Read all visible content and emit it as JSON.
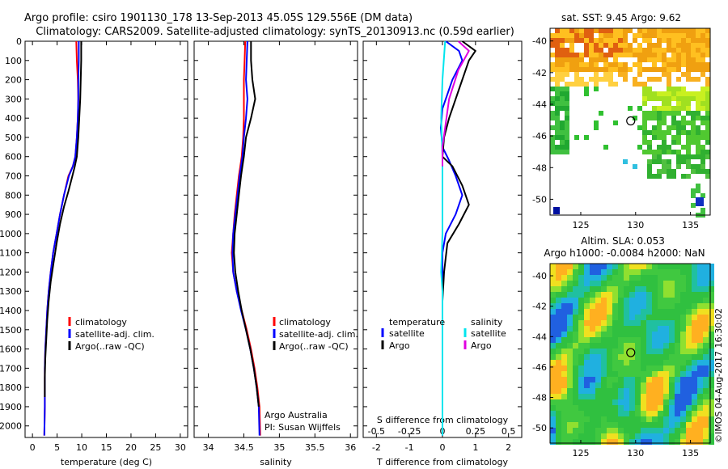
{
  "title_line1": "Argo profile: csiro 1901130_178 13-Sep-2013 45.05S 129.556E (DM data)",
  "title_line2": "Climatology: CARS2009. Satellite-adjusted climatology: synTS_20130913.nc (0.59d earlier)",
  "credit": "©IMOS 04-Aug-2017 16:30:02",
  "colors": {
    "climatology": "#ff0000",
    "satellite": "#0000ff",
    "argo": "#000000",
    "s_satellite": "#00e5ee",
    "s_argo": "#e000e0"
  },
  "chart_data": [
    {
      "type": "line",
      "id": "temperature",
      "xlabel": "temperature (deg C)",
      "ylabel": "",
      "xlim": [
        -1.5,
        31.5
      ],
      "ylim": [
        2060,
        0
      ],
      "xticks": [
        0,
        5,
        10,
        15,
        20,
        25,
        30
      ],
      "xtick_labels": [
        "0",
        "5",
        "10",
        "15",
        "20",
        "25",
        "30"
      ],
      "yticks": [
        0,
        100,
        200,
        300,
        400,
        500,
        600,
        700,
        800,
        900,
        1000,
        1100,
        1200,
        1300,
        1400,
        1500,
        1600,
        1700,
        1800,
        1900,
        2000
      ],
      "ytick_labels": [
        "0",
        "100",
        "200",
        "300",
        "400",
        "500",
        "600",
        "700",
        "800",
        "900",
        "1000",
        "1100",
        "1200",
        "1300",
        "1400",
        "1500",
        "1600",
        "1700",
        "1800",
        "1900",
        "2000"
      ],
      "legend": [
        "climatology",
        "satellite-adj. clim.",
        "Argo(..raw -QC)"
      ],
      "series": [
        {
          "name": "climatology",
          "color": "#ff0000",
          "x": [
            8.9,
            9.0,
            9.2,
            9.3,
            9.2,
            9.0,
            8.7,
            8.2,
            7.3,
            6.4,
            5.6,
            4.9,
            4.2,
            3.7,
            3.3,
            3.0,
            2.8,
            2.6,
            2.5,
            2.5,
            2.5,
            2.4
          ],
          "y": [
            0,
            100,
            200,
            300,
            400,
            500,
            600,
            650,
            700,
            800,
            900,
            1000,
            1100,
            1200,
            1300,
            1400,
            1500,
            1600,
            1700,
            1800,
            1900,
            2050
          ]
        },
        {
          "name": "satellite-adj. clim.",
          "color": "#0000ff",
          "x": [
            9.4,
            9.4,
            9.3,
            9.3,
            9.2,
            9.0,
            8.7,
            8.2,
            7.4,
            6.4,
            5.6,
            4.9,
            4.2,
            3.7,
            3.3,
            3.0,
            2.8,
            2.6,
            2.5,
            2.5,
            2.5,
            2.4
          ],
          "y": [
            0,
            100,
            200,
            300,
            400,
            500,
            600,
            650,
            700,
            800,
            900,
            1000,
            1100,
            1200,
            1300,
            1400,
            1500,
            1600,
            1700,
            1800,
            1900,
            2050
          ]
        },
        {
          "name": "Argo(..raw -QC)",
          "color": "#000000",
          "x": [
            9.9,
            9.9,
            9.8,
            9.7,
            9.5,
            9.3,
            9.0,
            8.6,
            8.1,
            7.3,
            6.4,
            5.6,
            4.9,
            4.3,
            3.7,
            3.3,
            3.0,
            2.8,
            2.6,
            2.5,
            2.5
          ],
          "y": [
            0,
            100,
            200,
            300,
            400,
            500,
            600,
            650,
            700,
            780,
            860,
            950,
            1050,
            1150,
            1250,
            1350,
            1450,
            1550,
            1650,
            1750,
            1850
          ]
        }
      ]
    },
    {
      "type": "line",
      "id": "salinity",
      "xlabel": "salinity",
      "xlim": [
        33.8,
        36.1
      ],
      "ylim": [
        2060,
        0
      ],
      "xticks": [
        34,
        34.5,
        35,
        35.5,
        36
      ],
      "xtick_labels": [
        "34",
        "34.5",
        "35",
        "35.5",
        "36"
      ],
      "legend": [
        "climatology",
        "satellite-adj. clim.",
        "Argo(..raw -QC)"
      ],
      "annotation_line1": "Argo Australia",
      "annotation_line2": "PI: Susan Wijffels",
      "series": [
        {
          "name": "climatology",
          "color": "#ff0000",
          "x": [
            34.52,
            34.51,
            34.5,
            34.5,
            34.5,
            34.49,
            34.47,
            34.45,
            34.43,
            34.4,
            34.37,
            34.35,
            34.33,
            34.35,
            34.4,
            34.47,
            34.54,
            34.6,
            34.65,
            34.69,
            34.72,
            34.73
          ],
          "y": [
            0,
            100,
            200,
            300,
            400,
            500,
            600,
            650,
            700,
            800,
            900,
            1000,
            1100,
            1200,
            1300,
            1400,
            1500,
            1600,
            1700,
            1800,
            1900,
            2050
          ]
        },
        {
          "name": "satellite-adj. clim.",
          "color": "#0000ff",
          "x": [
            34.55,
            34.54,
            34.53,
            34.55,
            34.53,
            34.5,
            34.48,
            34.46,
            34.44,
            34.41,
            34.38,
            34.35,
            34.34,
            34.35,
            34.4,
            34.46,
            34.53,
            34.59,
            34.64,
            34.68,
            34.71,
            34.72
          ],
          "y": [
            0,
            100,
            200,
            300,
            400,
            500,
            600,
            650,
            700,
            800,
            900,
            1000,
            1100,
            1200,
            1300,
            1400,
            1500,
            1600,
            1700,
            1800,
            1900,
            2050
          ]
        },
        {
          "name": "Argo(..raw -QC)",
          "color": "#000000",
          "x": [
            34.6,
            34.6,
            34.62,
            34.66,
            34.6,
            34.53,
            34.5,
            34.48,
            34.46,
            34.43,
            34.4,
            34.37,
            34.36,
            34.38,
            34.42,
            34.47,
            34.53,
            34.59,
            34.64,
            34.68,
            34.71
          ],
          "y": [
            0,
            100,
            200,
            300,
            400,
            500,
            600,
            650,
            700,
            800,
            900,
            1000,
            1100,
            1200,
            1300,
            1400,
            1500,
            1600,
            1700,
            1800,
            1900
          ]
        }
      ]
    },
    {
      "type": "line",
      "id": "difference",
      "xlabel": "T difference from climatology",
      "xlabel_top": "S difference from climatology",
      "xlim": [
        -2.4,
        2.4
      ],
      "ylim": [
        2060,
        0
      ],
      "xticks": [
        -2,
        -1,
        0,
        1,
        2
      ],
      "xtick_labels": [
        "-2",
        "-1",
        "0",
        "1",
        "2"
      ],
      "xticks_top": [
        -0.5,
        -0.25,
        0,
        0.25,
        0.5
      ],
      "xtick_labels_top": [
        "-0.5",
        "-0.25",
        "0",
        "0.25",
        "0.5"
      ],
      "legend_temperature_title": "temperature",
      "legend_salinity_title": "salinity",
      "legend_temperature": [
        "satellite",
        "Argo"
      ],
      "legend_salinity": [
        "satellite",
        "Argo"
      ],
      "series": [
        {
          "name": "T satellite",
          "color": "#0000ff",
          "x": [
            0.1,
            0.5,
            0.6,
            0.3,
            0.0,
            -0.05,
            0.0,
            0.2,
            0.4,
            0.6,
            0.4,
            0.1,
            0.0,
            0.0,
            0.0,
            0.0,
            0.0,
            0.0,
            0.0,
            0.0
          ],
          "y": [
            0,
            50,
            100,
            200,
            350,
            450,
            550,
            620,
            700,
            800,
            900,
            1000,
            1100,
            1200,
            1400,
            1600,
            1800,
            1900,
            2000,
            2050
          ]
        },
        {
          "name": "T Argo",
          "color": "#000000",
          "x": [
            0.6,
            1.0,
            0.8,
            0.5,
            0.2,
            0.05,
            0.0,
            0.3,
            0.6,
            0.8,
            0.5,
            0.15,
            0.05,
            0.0,
            0.0,
            0.0,
            0.0,
            0.0,
            0.0
          ],
          "y": [
            0,
            50,
            100,
            250,
            400,
            500,
            600,
            650,
            750,
            850,
            950,
            1050,
            1200,
            1350,
            1500,
            1650,
            1750,
            1850,
            1900
          ]
        },
        {
          "name": "S satellite",
          "color": "#00e5ee",
          "x": [
            0.02,
            0.0,
            -0.01,
            0.0,
            0.0,
            0.0,
            -0.01,
            0.0,
            0.0,
            0.0,
            0.0,
            0.0,
            0.0,
            0.0,
            0.0
          ],
          "y": [
            0,
            200,
            400,
            600,
            800,
            1000,
            1200,
            1300,
            1400,
            1500,
            1600,
            1700,
            1800,
            1900,
            2050
          ]
        },
        {
          "name": "S Argo",
          "color": "#e000e0",
          "x": [
            0.12,
            0.2,
            0.12,
            0.05,
            0.02,
            0.0,
            0.0
          ],
          "y": [
            0,
            50,
            150,
            300,
            450,
            550,
            650
          ]
        }
      ]
    }
  ],
  "map_sst": {
    "title": "sat. SST: 9.45  Argo: 9.62",
    "xticks": [
      125,
      130,
      135
    ],
    "xtick_labels": [
      "125",
      "130",
      "135"
    ],
    "yticks": [
      -40,
      -42,
      -44,
      -46,
      -48,
      -50
    ],
    "ytick_labels": [
      "-40",
      "-42",
      "-44",
      "-46",
      "-48",
      "-50"
    ],
    "lon_range": [
      122.2,
      136.8
    ],
    "lat_range": [
      -51.0,
      -39.2
    ],
    "profile_location": [
      129.556,
      -45.05
    ]
  },
  "map_sla": {
    "title_line1": "Altim. SLA: 0.053",
    "title_line2": "Argo h1000: -0.0084  h2000: NaN",
    "xticks": [
      125,
      130,
      135
    ],
    "xtick_labels": [
      "125",
      "130",
      "135"
    ],
    "yticks": [
      -40,
      -42,
      -44,
      -46,
      -48,
      -50
    ],
    "ytick_labels": [
      "-40",
      "-42",
      "-44",
      "-46",
      "-48",
      "-50"
    ],
    "lon_range": [
      122.2,
      136.8
    ],
    "lat_range": [
      -51.0,
      -39.2
    ],
    "profile_location": [
      129.556,
      -45.05
    ]
  }
}
